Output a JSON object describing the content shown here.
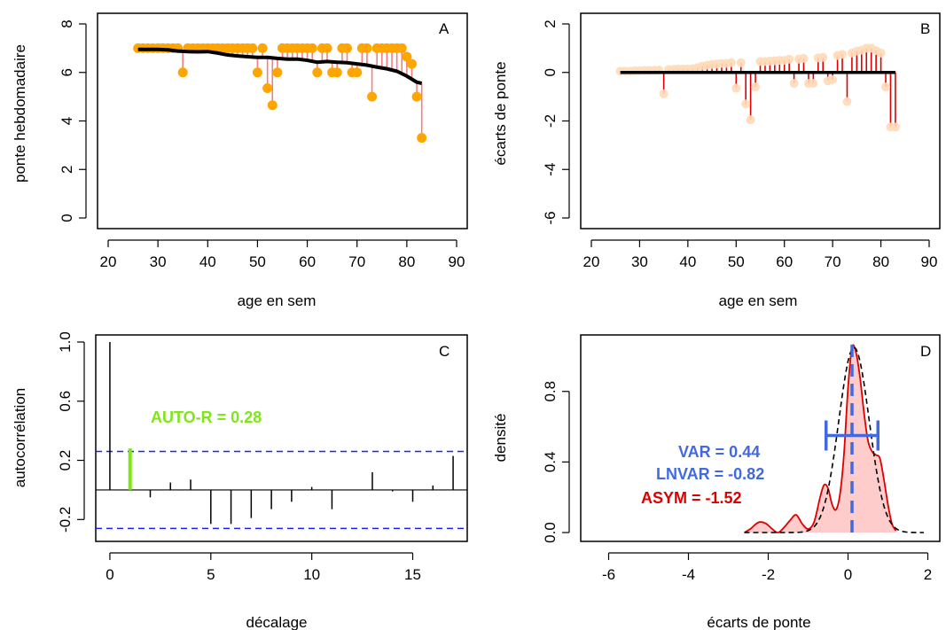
{
  "colors": {
    "orange": "#FFA500",
    "pink": "#F08080",
    "light_orange": "#FFDAB9",
    "red": "#DD0000",
    "blue": "#2222DD",
    "green": "#7FE619",
    "steel_blue": "#4169E1",
    "density_fill": "#FFCCCC"
  },
  "chart_data": [
    {
      "id": "A",
      "type": "scatter",
      "panel_letter": "A",
      "xlabel": "age en sem",
      "ylabel": "ponte hebdomadaire",
      "xlim": [
        20,
        90
      ],
      "ylim": [
        0,
        8
      ],
      "xticks": [
        20,
        30,
        40,
        50,
        60,
        70,
        80,
        90
      ],
      "yticks": [
        0,
        2,
        4,
        6,
        8
      ],
      "series": [
        {
          "kind": "points",
          "x": [
            26,
            27,
            28,
            29,
            30,
            31,
            32,
            33,
            34,
            35,
            36,
            37,
            38,
            39,
            40,
            41,
            42,
            43,
            44,
            45,
            46,
            47,
            48,
            49,
            50,
            51,
            52,
            53,
            54,
            55,
            56,
            57,
            58,
            59,
            60,
            61,
            62,
            63,
            64,
            65,
            66,
            67,
            68,
            69,
            70,
            71,
            72,
            73,
            74,
            75,
            76,
            77,
            78,
            79,
            80,
            81,
            82,
            83
          ],
          "y": [
            7,
            7,
            7,
            7,
            7,
            7,
            7,
            7,
            7,
            6,
            7,
            7,
            7,
            7,
            7,
            7,
            7,
            7,
            7,
            7,
            7,
            7,
            7,
            7,
            6,
            7,
            5.35,
            4.65,
            6,
            7,
            7,
            7,
            7,
            7,
            7,
            7,
            6,
            7,
            7,
            6,
            6,
            7,
            7,
            6,
            6,
            7,
            7,
            5,
            7,
            7,
            7,
            7,
            7,
            7,
            6.65,
            6.35,
            5,
            3.3
          ]
        },
        {
          "kind": "trend",
          "x": [
            26,
            28,
            30,
            32,
            34,
            36,
            38,
            40,
            42,
            44,
            46,
            48,
            50,
            52,
            54,
            56,
            58,
            60,
            62,
            64,
            66,
            68,
            70,
            72,
            74,
            76,
            78,
            80,
            82,
            83
          ],
          "y": [
            6.95,
            6.95,
            6.95,
            6.93,
            6.88,
            6.86,
            6.85,
            6.86,
            6.8,
            6.72,
            6.68,
            6.65,
            6.62,
            6.62,
            6.58,
            6.55,
            6.55,
            6.5,
            6.42,
            6.45,
            6.42,
            6.4,
            6.35,
            6.3,
            6.22,
            6.15,
            6.05,
            5.85,
            5.6,
            5.55
          ]
        }
      ]
    },
    {
      "id": "B",
      "type": "scatter",
      "panel_letter": "B",
      "xlabel": "age en sem",
      "ylabel": "écarts de ponte",
      "xlim": [
        20,
        90
      ],
      "ylim": [
        -6,
        2
      ],
      "xticks": [
        20,
        30,
        40,
        50,
        60,
        70,
        80,
        90
      ],
      "yticks": [
        -6,
        -4,
        -2,
        0,
        2
      ],
      "series": [
        {
          "kind": "deviations",
          "x": [
            26,
            27,
            28,
            29,
            30,
            31,
            32,
            33,
            34,
            35,
            36,
            37,
            38,
            39,
            40,
            41,
            42,
            43,
            44,
            45,
            46,
            47,
            48,
            49,
            50,
            51,
            52,
            53,
            54,
            55,
            56,
            57,
            58,
            59,
            60,
            61,
            62,
            63,
            64,
            65,
            66,
            67,
            68,
            69,
            70,
            71,
            72,
            73,
            74,
            75,
            76,
            77,
            78,
            79,
            80,
            81,
            82,
            83
          ],
          "y": [
            0.05,
            0.05,
            0.05,
            0.07,
            0.07,
            0.08,
            0.08,
            0.09,
            0.1,
            -0.88,
            0.12,
            0.13,
            0.14,
            0.14,
            0.14,
            0.16,
            0.2,
            0.26,
            0.3,
            0.33,
            0.35,
            0.37,
            0.37,
            0.4,
            -0.65,
            0.4,
            -1.3,
            -1.95,
            -0.6,
            0.45,
            0.45,
            0.47,
            0.48,
            0.5,
            0.5,
            0.55,
            -0.45,
            0.55,
            0.58,
            -0.45,
            -0.45,
            0.6,
            0.62,
            -0.35,
            -0.3,
            0.7,
            0.75,
            -1.2,
            0.8,
            0.88,
            0.92,
            1.0,
            1.0,
            0.9,
            0.8,
            -0.6,
            -2.25,
            -2.25
          ]
        }
      ]
    },
    {
      "id": "C",
      "type": "bar",
      "panel_letter": "C",
      "xlabel": "décalage",
      "ylabel": "autocorrélation",
      "xlim": [
        -0.7,
        17.7
      ],
      "ylim": [
        -0.3,
        1.0
      ],
      "xticks": [
        0,
        5,
        10,
        15
      ],
      "yticks": [
        -0.2,
        0.2,
        0.6,
        1.0
      ],
      "conf_limit": 0.26,
      "highlight_lag": 1,
      "annotation": "AUTO-R = 0.28",
      "series": [
        {
          "kind": "acf",
          "x": [
            0,
            1,
            2,
            3,
            4,
            5,
            6,
            7,
            8,
            9,
            10,
            11,
            12,
            13,
            14,
            15,
            16,
            17
          ],
          "y": [
            1.0,
            0.28,
            -0.05,
            0.05,
            0.07,
            -0.23,
            -0.23,
            -0.19,
            -0.13,
            -0.08,
            0.02,
            -0.13,
            0.0,
            0.12,
            -0.01,
            -0.08,
            0.03,
            0.23
          ]
        }
      ]
    },
    {
      "id": "D",
      "type": "area",
      "panel_letter": "D",
      "xlabel": "écarts de ponte",
      "ylabel": "densité",
      "xlim": [
        -6.7,
        2.3
      ],
      "ylim": [
        0,
        1.08
      ],
      "xticks": [
        -6,
        -4,
        -2,
        0,
        2
      ],
      "yticks": [
        0.0,
        0.4,
        0.8
      ],
      "mean_line": 0.1,
      "error_bar": {
        "center": 0.1,
        "low": -0.55,
        "high": 0.75,
        "y": 0.55
      },
      "annotations": [
        "VAR =  0.44",
        "LNVAR = -0.82",
        "ASYM =  -1.52"
      ],
      "series": [
        {
          "kind": "density",
          "x": [
            -2.6,
            -2.45,
            -2.3,
            -2.2,
            -2.05,
            -1.9,
            -1.75,
            -1.6,
            -1.45,
            -1.3,
            -1.15,
            -1.0,
            -0.85,
            -0.7,
            -0.6,
            -0.5,
            -0.4,
            -0.3,
            -0.2,
            -0.1,
            0.0,
            0.1,
            0.2,
            0.3,
            0.4,
            0.5,
            0.6,
            0.7,
            0.8,
            0.9,
            1.0,
            1.1,
            1.2
          ],
          "y": [
            0.0,
            0.02,
            0.05,
            0.06,
            0.05,
            0.02,
            0.0,
            0.03,
            0.07,
            0.1,
            0.05,
            0.02,
            0.06,
            0.2,
            0.27,
            0.25,
            0.16,
            0.13,
            0.22,
            0.45,
            0.82,
            1.05,
            1.02,
            0.88,
            0.68,
            0.52,
            0.46,
            0.44,
            0.42,
            0.3,
            0.16,
            0.05,
            0.01
          ]
        },
        {
          "kind": "normal",
          "mean": 0.15,
          "sd": 0.38
        }
      ]
    }
  ]
}
